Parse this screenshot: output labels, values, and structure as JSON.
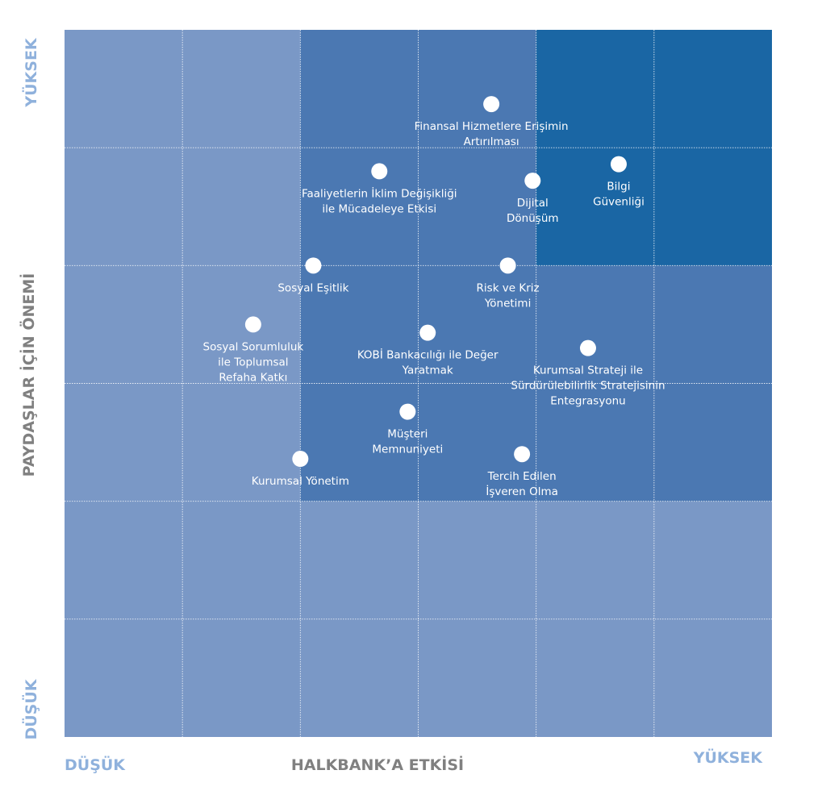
{
  "chart_data": {
    "type": "scatter",
    "title": "",
    "xlabel": "HALKBANK’A ETKİSİ",
    "ylabel": "PAYDAŞLAR İÇİN ÖNEMİ",
    "x_low_label": "DÜŞÜK",
    "x_high_label": "YÜKSEK",
    "y_low_label": "DÜŞÜK",
    "y_high_label": "YÜKSEK",
    "xlim": [
      0,
      6
    ],
    "ylim": [
      0,
      6
    ],
    "grid": true,
    "zones": [
      {
        "x": [
          0,
          6
        ],
        "y": [
          0,
          6
        ],
        "color": "#7a98c6"
      },
      {
        "x": [
          2,
          6
        ],
        "y": [
          2,
          6
        ],
        "color": "#4b78b2"
      },
      {
        "x": [
          4,
          6
        ],
        "y": [
          4,
          6
        ],
        "color": "#1a66a4"
      }
    ],
    "label_color": "#8fb1dc",
    "axis_title_color": "#808080",
    "points": [
      {
        "label": "Finansal Hizmetlere Erişimin\nArtırılması",
        "x": 3.62,
        "y": 5.37
      },
      {
        "label": "Bilgi\nGüvenliği",
        "x": 4.7,
        "y": 4.86
      },
      {
        "label": "Dijital\nDönüşüm",
        "x": 3.97,
        "y": 4.72
      },
      {
        "label": "Faaliyetlerin İklim Değişikliği\nile Mücadeleye Etkisi",
        "x": 2.67,
        "y": 4.8
      },
      {
        "label": "Sosyal Eşitlik",
        "x": 2.11,
        "y": 4.0
      },
      {
        "label": "Risk ve Kriz\nYönetimi",
        "x": 3.76,
        "y": 4.0
      },
      {
        "label": "Sosyal Sorumluluk\nile Toplumsal\nRefaha Katkı",
        "x": 1.6,
        "y": 3.5
      },
      {
        "label": "KOBİ Bankacılığı ile Değer\nYaratmak",
        "x": 3.08,
        "y": 3.43
      },
      {
        "label": "Kurumsal Strateji ile\nSürdürülebilirlik Stratejisinin\nEntegrasyonu",
        "x": 4.44,
        "y": 3.3
      },
      {
        "label": "Müşteri\nMemnuniyeti",
        "x": 2.91,
        "y": 2.76
      },
      {
        "label": "Kurumsal Yönetim",
        "x": 2.0,
        "y": 2.36
      },
      {
        "label": "Tercih Edilen\nİşveren Olma",
        "x": 3.88,
        "y": 2.4
      }
    ]
  }
}
